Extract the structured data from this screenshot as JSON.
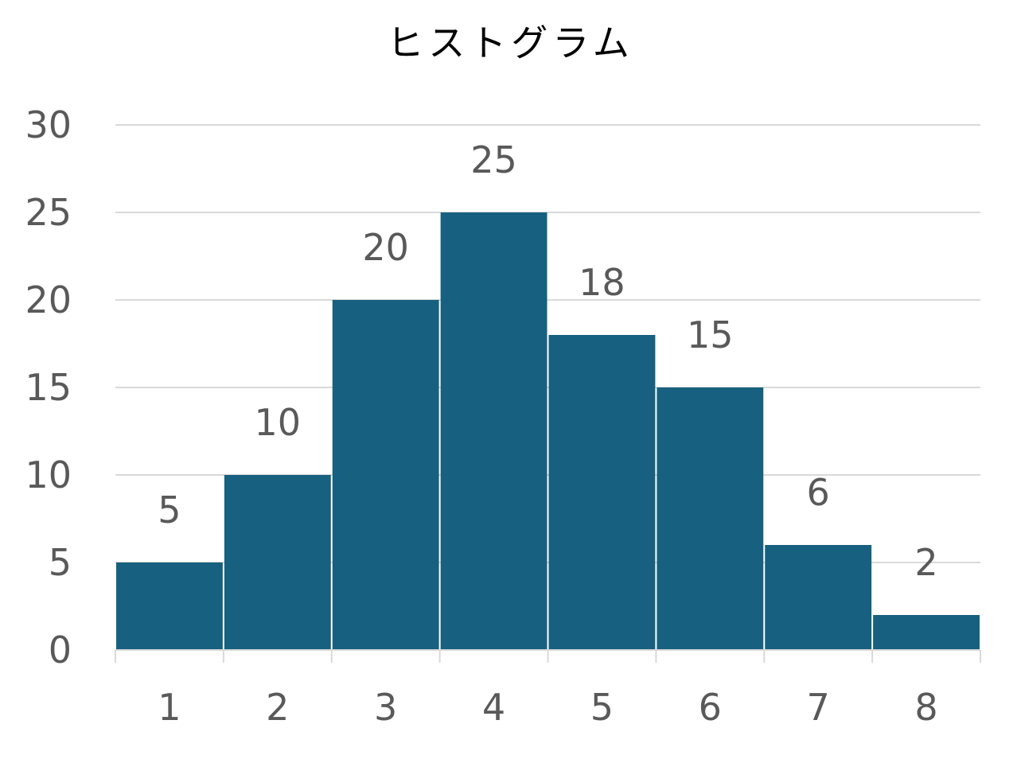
{
  "chart_data": {
    "type": "bar",
    "title": "ヒストグラム",
    "categories": [
      "1",
      "2",
      "3",
      "4",
      "5",
      "6",
      "7",
      "8"
    ],
    "values": [
      5,
      10,
      20,
      25,
      18,
      15,
      6,
      2
    ],
    "data_labels": [
      "5",
      "10",
      "20",
      "25",
      "18",
      "15",
      "6",
      "2"
    ],
    "y_ticks": [
      "0",
      "5",
      "10",
      "15",
      "20",
      "25",
      "30"
    ],
    "ylim": [
      0,
      30
    ],
    "xlabel": "",
    "ylabel": "",
    "grid": true,
    "legend": "none",
    "colors": {
      "bar": "#17607f",
      "grid": "#d9d9d9",
      "axis": "#d9d9d9",
      "text": "#595959",
      "title": "#000000"
    }
  }
}
